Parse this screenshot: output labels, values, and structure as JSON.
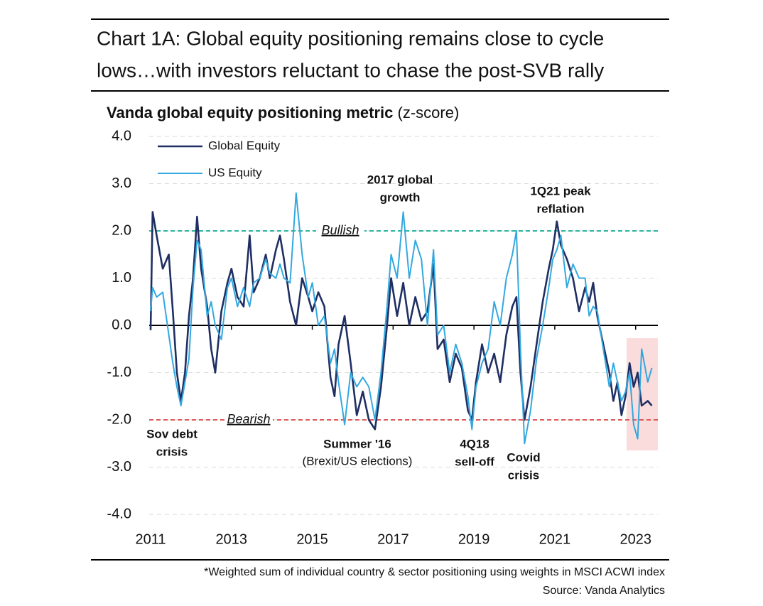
{
  "chart_data": {
    "type": "line",
    "title_lines": [
      "Chart 1A: Global equity positioning remains close to cycle",
      "lows…with investors reluctant to chase the post-SVB rally"
    ],
    "subtitle": "Vanda global equity positioning metric",
    "subtitle_unit": "(z-score)",
    "footnote": "*Weighted sum of individual country & sector positioning using weights in MSCI ACWI index",
    "source": "Source: Vanda Analytics",
    "x": [
      2011.0,
      2011.05,
      2011.15,
      2011.3,
      2011.45,
      2011.55,
      2011.65,
      2011.75,
      2011.85,
      2011.95,
      2012.05,
      2012.15,
      2012.25,
      2012.4,
      2012.5,
      2012.6,
      2012.75,
      2012.9,
      2013.0,
      2013.15,
      2013.3,
      2013.45,
      2013.55,
      2013.7,
      2013.85,
      2013.95,
      2014.1,
      2014.2,
      2014.3,
      2014.45,
      2014.6,
      2014.75,
      2014.9,
      2015.0,
      2015.15,
      2015.3,
      2015.45,
      2015.55,
      2015.65,
      2015.8,
      2015.95,
      2016.1,
      2016.25,
      2016.4,
      2016.55,
      2016.7,
      2016.85,
      2016.95,
      2017.1,
      2017.25,
      2017.4,
      2017.55,
      2017.7,
      2017.85,
      2018.0,
      2018.1,
      2018.25,
      2018.4,
      2018.55,
      2018.7,
      2018.85,
      2018.95,
      2019.05,
      2019.2,
      2019.35,
      2019.5,
      2019.65,
      2019.8,
      2019.95,
      2020.05,
      2020.15,
      2020.25,
      2020.4,
      2020.55,
      2020.7,
      2020.85,
      2020.95,
      2021.05,
      2021.15,
      2021.3,
      2021.45,
      2021.6,
      2021.75,
      2021.85,
      2021.95,
      2022.05,
      2022.2,
      2022.35,
      2022.45,
      2022.55,
      2022.65,
      2022.75,
      2022.85,
      2022.95,
      2023.05,
      2023.15,
      2023.3,
      2023.4
    ],
    "series": [
      {
        "name": "Global Equity",
        "color": "#1f2f63",
        "values": [
          -0.1,
          2.4,
          1.9,
          1.2,
          1.5,
          0.3,
          -1.0,
          -1.6,
          -1.0,
          0.2,
          1.0,
          2.3,
          1.2,
          0.4,
          -0.5,
          -1.0,
          0.3,
          0.9,
          1.2,
          0.6,
          0.4,
          1.9,
          0.7,
          1.0,
          1.5,
          1.0,
          1.6,
          1.9,
          1.4,
          0.5,
          0.0,
          1.0,
          0.6,
          0.3,
          0.7,
          0.4,
          -1.1,
          -1.5,
          -0.4,
          0.2,
          -0.8,
          -1.9,
          -1.4,
          -2.0,
          -2.2,
          -1.3,
          0.0,
          1.0,
          0.2,
          0.9,
          0.0,
          0.6,
          0.1,
          0.3,
          1.3,
          -0.5,
          -0.3,
          -1.2,
          -0.6,
          -0.9,
          -1.8,
          -2.0,
          -1.2,
          -0.4,
          -1.0,
          -0.6,
          -1.2,
          -0.2,
          0.4,
          0.6,
          -1.0,
          -2.0,
          -1.3,
          -0.4,
          0.5,
          1.2,
          1.6,
          2.2,
          1.7,
          1.4,
          1.0,
          0.3,
          0.8,
          0.5,
          0.9,
          0.2,
          -0.4,
          -1.0,
          -1.6,
          -1.2,
          -1.9,
          -1.5,
          -0.8,
          -1.3,
          -1.0,
          -1.7,
          -1.6,
          -1.7
        ]
      },
      {
        "name": "US Equity",
        "color": "#33a8df",
        "values": [
          0.3,
          0.8,
          0.6,
          0.7,
          -0.2,
          -0.8,
          -1.3,
          -1.7,
          -1.2,
          -0.7,
          0.8,
          1.8,
          1.6,
          0.2,
          0.5,
          0.0,
          -0.3,
          0.8,
          1.0,
          0.4,
          0.8,
          0.4,
          0.9,
          1.0,
          1.4,
          1.1,
          1.0,
          1.3,
          1.0,
          0.9,
          2.8,
          1.5,
          0.6,
          0.9,
          0.0,
          0.2,
          -0.8,
          -0.5,
          -1.2,
          -2.1,
          -1.0,
          -1.3,
          -1.1,
          -1.3,
          -2.0,
          -1.0,
          0.4,
          1.5,
          1.0,
          2.4,
          1.0,
          1.8,
          1.4,
          0.0,
          1.6,
          -0.2,
          0.0,
          -1.0,
          -0.4,
          -0.8,
          -1.5,
          -2.2,
          -1.3,
          -0.8,
          -0.5,
          0.5,
          0.0,
          1.0,
          1.5,
          2.0,
          -0.5,
          -2.5,
          -1.8,
          -0.7,
          0.0,
          0.8,
          1.4,
          1.6,
          1.9,
          0.8,
          1.3,
          1.0,
          1.0,
          0.2,
          0.4,
          0.3,
          -0.5,
          -1.3,
          -0.8,
          -1.2,
          -1.6,
          -1.4,
          -1.0,
          -2.1,
          -2.4,
          -0.5,
          -1.2,
          -0.9
        ]
      }
    ],
    "xlim": [
      2011,
      2023.55
    ],
    "xticks": [
      2011,
      2013,
      2015,
      2017,
      2019,
      2021,
      2023
    ],
    "ylim": [
      -4,
      4
    ],
    "yticks": [
      {
        "value": -4,
        "label": "-4.0"
      },
      {
        "value": -3,
        "label": "-3.0"
      },
      {
        "value": -2,
        "label": "-2.0"
      },
      {
        "value": -1,
        "label": "-1.0"
      },
      {
        "value": 0,
        "label": "0.0"
      },
      {
        "value": 1,
        "label": "1.0"
      },
      {
        "value": 2,
        "label": "2.0"
      },
      {
        "value": 3,
        "label": "3.0"
      },
      {
        "value": 4,
        "label": "4.0"
      }
    ],
    "grid": true,
    "legend": "upper left",
    "reference_lines": [
      {
        "value": 2,
        "label": "Bullish",
        "color": "#2bb5a0"
      },
      {
        "value": -2,
        "label": "Bearish",
        "color": "#e05a5a"
      }
    ],
    "annotations": [
      {
        "lines": [
          "2017 global",
          "growth"
        ],
        "color": "#21b38a"
      },
      {
        "lines": [
          "1Q21 peak",
          "reflation"
        ],
        "color": "#21b38a"
      },
      {
        "lines": [
          "Sov debt",
          "crisis"
        ],
        "color": "#e04848"
      },
      {
        "lines": [
          "Summer '16"
        ],
        "color": "#e04848"
      },
      {
        "lines": [
          "(Brexit/US elections)"
        ],
        "color": "#e86a6a"
      },
      {
        "lines": [
          "4Q18",
          "sell-off"
        ],
        "color": "#e04848"
      },
      {
        "lines": [
          "Covid",
          "crisis"
        ],
        "color": "#e04848"
      }
    ]
  }
}
